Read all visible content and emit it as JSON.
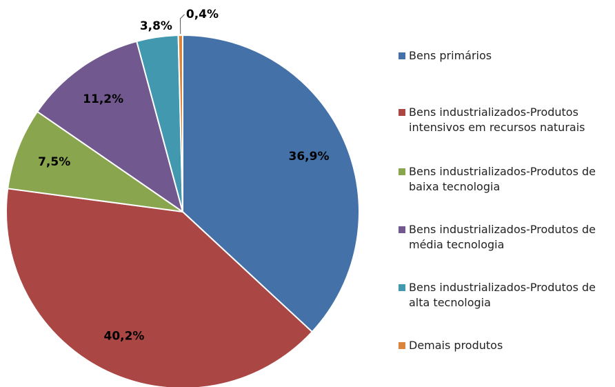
{
  "chart_data": {
    "type": "pie",
    "categories": [
      "Bens primários",
      "Bens industrializados-Produtos intensivos em recursos naturais",
      "Bens industrializados-Produtos de baixa tecnologia",
      "Bens industrializados-Produtos de média tecnologia",
      "Bens industrializados-Produtos de alta tecnologia",
      "Demais produtos"
    ],
    "values": [
      36.9,
      40.2,
      7.5,
      11.2,
      3.8,
      0.4
    ],
    "value_labels": [
      "36,9%",
      "40,2%",
      "7,5%",
      "11,2%",
      "3,8%",
      "0,4%"
    ],
    "colors": [
      "#4472a8",
      "#aa4644",
      "#89a54e",
      "#71588f",
      "#4198af",
      "#db843d"
    ],
    "legend": "right"
  }
}
